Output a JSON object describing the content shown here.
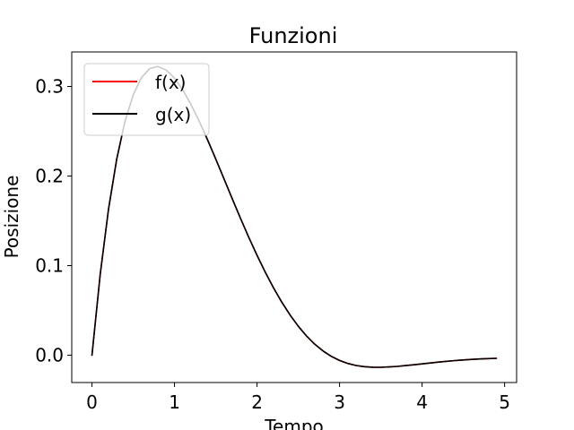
{
  "chart_data": {
    "type": "line",
    "title": "Funzioni",
    "xlabel": "Tempo",
    "ylabel": "Posizione",
    "xlim": [
      -0.245,
      5.145
    ],
    "ylim": [
      -0.0305,
      0.3385
    ],
    "xticks": [
      0,
      1,
      2,
      3,
      4,
      5
    ],
    "yticks": [
      0.0,
      0.1,
      0.2,
      0.3
    ],
    "ytick_labels": [
      "0.0",
      "0.1",
      "0.2",
      "0.3"
    ],
    "grid": false,
    "legend_position": "top-left",
    "x": [
      0,
      0.1,
      0.2,
      0.3,
      0.4,
      0.5,
      0.6,
      0.7,
      0.8,
      0.9,
      1.0,
      1.1,
      1.2,
      1.3,
      1.4,
      1.5,
      1.6,
      1.7,
      1.8,
      1.9,
      2.0,
      2.1,
      2.2,
      2.3,
      2.4,
      2.5,
      2.6,
      2.7,
      2.8,
      2.9,
      3.0,
      3.1,
      3.2,
      3.3,
      3.4,
      3.5,
      3.6,
      3.7,
      3.8,
      3.9,
      4.0,
      4.1,
      4.2,
      4.3,
      4.4,
      4.5,
      4.6,
      4.7,
      4.8,
      4.9
    ],
    "series": [
      {
        "name": "f(x)",
        "color": "#ff0000",
        "values": [
          0.0,
          0.0903,
          0.1627,
          0.2189,
          0.261,
          0.2908,
          0.3099,
          0.3199,
          0.3223,
          0.3183,
          0.3093,
          0.2961,
          0.2798,
          0.261,
          0.2405,
          0.2189,
          0.1968,
          0.1746,
          0.1527,
          0.1316,
          0.1115,
          0.0926,
          0.0751,
          0.0592,
          0.0449,
          0.0323,
          0.0214,
          0.0122,
          0.0047,
          -0.0013,
          -0.0059,
          -0.0092,
          -0.0115,
          -0.0128,
          -0.0134,
          -0.0135,
          -0.0131,
          -0.0125,
          -0.0116,
          -0.0107,
          -0.0097,
          -0.0087,
          -0.0077,
          -0.0068,
          -0.006,
          -0.0053,
          -0.0047,
          -0.0042,
          -0.0038,
          -0.0035
        ]
      },
      {
        "name": "g(x)",
        "color": "#000000",
        "values": [
          0.0,
          0.0903,
          0.1627,
          0.2189,
          0.261,
          0.2908,
          0.3099,
          0.3199,
          0.3223,
          0.3183,
          0.3093,
          0.2961,
          0.2798,
          0.261,
          0.2405,
          0.2189,
          0.1968,
          0.1746,
          0.1527,
          0.1316,
          0.1115,
          0.0926,
          0.0751,
          0.0592,
          0.0449,
          0.0323,
          0.0214,
          0.0122,
          0.0047,
          -0.0013,
          -0.0059,
          -0.0092,
          -0.0115,
          -0.0128,
          -0.0134,
          -0.0135,
          -0.0131,
          -0.0125,
          -0.0116,
          -0.0107,
          -0.0097,
          -0.0087,
          -0.0077,
          -0.0068,
          -0.006,
          -0.0053,
          -0.0047,
          -0.0042,
          -0.0038,
          -0.0035
        ]
      }
    ]
  }
}
